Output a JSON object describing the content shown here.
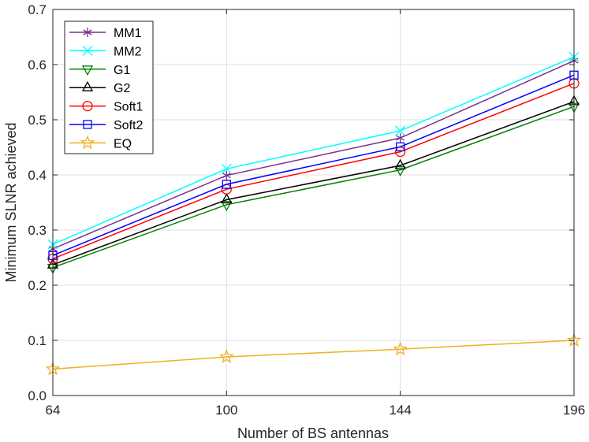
{
  "chart_data": {
    "type": "line",
    "xlabel": "Number of BS antennas",
    "ylabel": "Minimum SLNR achieved",
    "categories": [
      "64",
      "100",
      "144",
      "196"
    ],
    "ylim": [
      0.0,
      0.7
    ],
    "yticks": [
      "0.0",
      "0.1",
      "0.2",
      "0.3",
      "0.4",
      "0.5",
      "0.6",
      "0.7"
    ],
    "grid": true,
    "legend_position": "top-left",
    "series": [
      {
        "name": "MM1",
        "color": "#7E2F8E",
        "marker": "star6",
        "values": [
          0.266,
          0.399,
          0.467,
          0.607
        ]
      },
      {
        "name": "MM2",
        "color": "#00FFFF",
        "marker": "x",
        "values": [
          0.274,
          0.411,
          0.48,
          0.614
        ]
      },
      {
        "name": "G1",
        "color": "#008000",
        "marker": "tri-down",
        "values": [
          0.232,
          0.346,
          0.409,
          0.524
        ]
      },
      {
        "name": "G2",
        "color": "#000000",
        "marker": "tri-up",
        "values": [
          0.237,
          0.355,
          0.417,
          0.533
        ]
      },
      {
        "name": "Soft1",
        "color": "#FF0000",
        "marker": "circle",
        "values": [
          0.248,
          0.374,
          0.442,
          0.566
        ]
      },
      {
        "name": "Soft2",
        "color": "#0000FF",
        "marker": "square",
        "values": [
          0.254,
          0.383,
          0.451,
          0.581
        ]
      },
      {
        "name": "EQ",
        "color": "#EDB120",
        "marker": "star5",
        "values": [
          0.048,
          0.07,
          0.084,
          0.1
        ]
      }
    ]
  }
}
